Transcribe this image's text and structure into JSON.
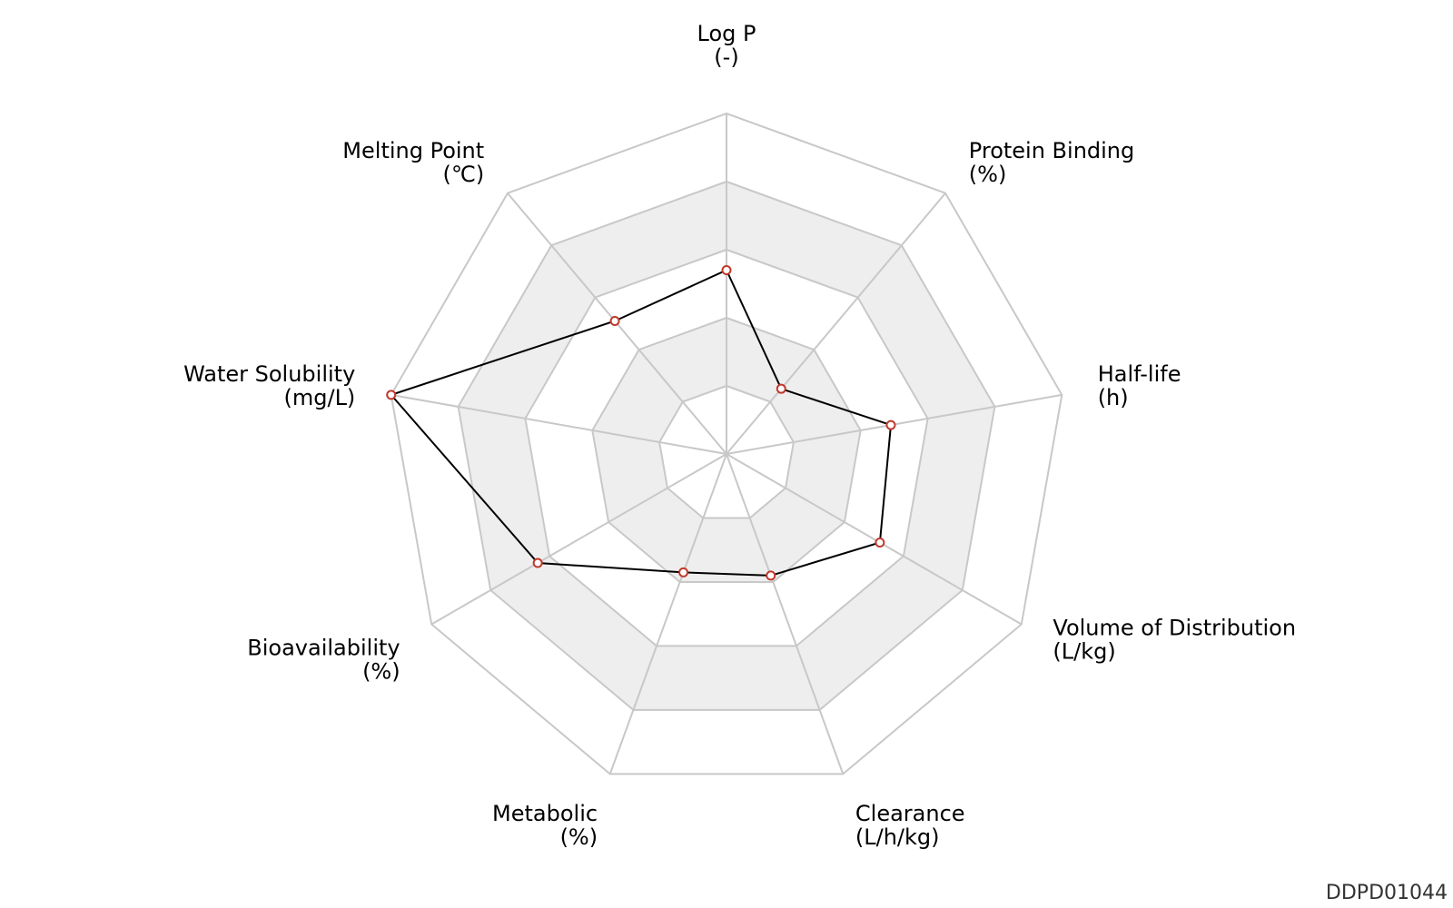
{
  "chart_data": {
    "type": "radar",
    "axes": [
      {
        "name": "Log P",
        "unit": "(-)"
      },
      {
        "name": "Protein Binding",
        "unit": "(%)"
      },
      {
        "name": "Half-life",
        "unit": "(h)"
      },
      {
        "name": "Volume of Distribution",
        "unit": "(L/kg)"
      },
      {
        "name": "Clearance",
        "unit": "(L/h/kg)"
      },
      {
        "name": "Metabolic",
        "unit": "(%)"
      },
      {
        "name": "Bioavailability",
        "unit": "(%)"
      },
      {
        "name": "Water Solubility",
        "unit": "(mg/L)"
      },
      {
        "name": "Melting Point",
        "unit": "(℃)"
      }
    ],
    "range": [
      0,
      1
    ],
    "rings": 5,
    "values": [
      0.54,
      0.25,
      0.49,
      0.52,
      0.38,
      0.37,
      0.64,
      1.0,
      0.51
    ],
    "grid": true,
    "colors": {
      "line": "#000000",
      "marker_stroke": "#c0392b",
      "marker_fill": "#ffffff",
      "grid": "#c8c8c8",
      "band": "#eeeeee"
    }
  },
  "code": "DDPD01044"
}
